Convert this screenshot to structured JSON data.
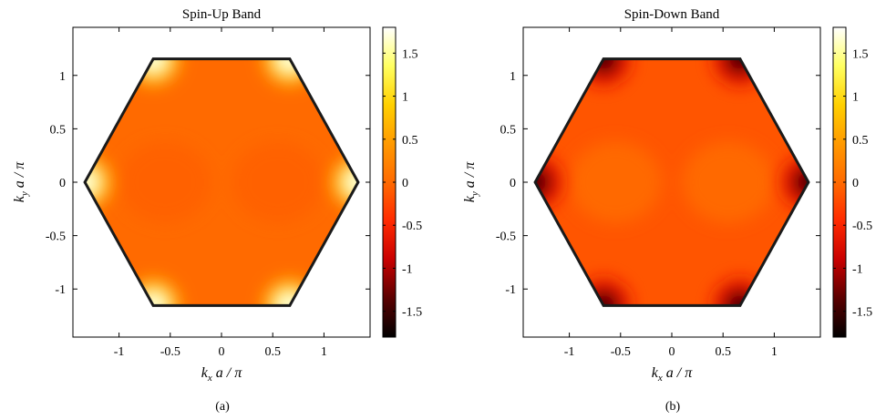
{
  "chart_data": [
    {
      "type": "heatmap",
      "panel": "(a)",
      "title": "Spin-Up Band",
      "xlabel": {
        "var": "k",
        "sub": "x",
        "rest": "a / π"
      },
      "ylabel": {
        "var": "k",
        "sub": "y",
        "rest": "a / π"
      },
      "xlim": [
        -1.45,
        1.45
      ],
      "ylim": [
        -1.45,
        1.45
      ],
      "xticks": [
        -1,
        -0.5,
        0,
        0.5,
        1
      ],
      "xtick_labels": [
        "-1",
        "-0.5",
        "0",
        "0.5",
        "1"
      ],
      "yticks": [
        -1,
        -0.5,
        0,
        0.5,
        1
      ],
      "ytick_labels": [
        "-1",
        "-0.5",
        "0",
        "0.5",
        "1"
      ],
      "colorbar": {
        "range": [
          -1.8,
          1.8
        ],
        "ticks": [
          -1.5,
          -1,
          -0.5,
          0,
          0.5,
          1,
          1.5
        ],
        "tick_labels": [
          "-1.5",
          "-1",
          "-0.5",
          "0",
          "0.5",
          "1",
          "1.5"
        ]
      },
      "zone_boundary": "hexagon",
      "hexagon_radius": 1.3333,
      "background_value": 0.0,
      "lobe_value": -0.08,
      "corner_value": 1.8,
      "corner_extremum": "max"
    },
    {
      "type": "heatmap",
      "panel": "(b)",
      "title": "Spin-Down Band",
      "xlabel": {
        "var": "k",
        "sub": "x",
        "rest": "a / π"
      },
      "ylabel": {
        "var": "k",
        "sub": "y",
        "rest": "a / π"
      },
      "xlim": [
        -1.45,
        1.45
      ],
      "ylim": [
        -1.45,
        1.45
      ],
      "xticks": [
        -1,
        -0.5,
        0,
        0.5,
        1
      ],
      "xtick_labels": [
        "-1",
        "-0.5",
        "0",
        "0.5",
        "1"
      ],
      "yticks": [
        -1,
        -0.5,
        0,
        0.5,
        1
      ],
      "ytick_labels": [
        "-1",
        "-0.5",
        "0",
        "0.5",
        "1"
      ],
      "colorbar": {
        "range": [
          -1.8,
          1.8
        ],
        "ticks": [
          -1.5,
          -1,
          -0.5,
          0,
          0.5,
          1,
          1.5
        ],
        "tick_labels": [
          "-1.5",
          "-1",
          "-0.5",
          "0",
          "0.5",
          "1",
          "1.5"
        ]
      },
      "zone_boundary": "hexagon",
      "hexagon_radius": 1.3333,
      "background_value": -0.15,
      "lobe_value": 0.02,
      "corner_value": -1.8,
      "corner_extremum": "min"
    }
  ],
  "colormap": [
    "#000000",
    "#5a0000",
    "#c80000",
    "#ff2a00",
    "#ff6a00",
    "#ff9a00",
    "#ffd000",
    "#ffff60",
    "#ffffff"
  ]
}
